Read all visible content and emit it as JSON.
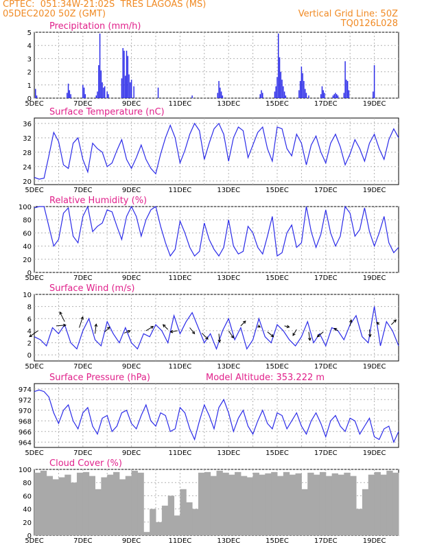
{
  "header": {
    "line1_left": "CPTEC:  051:34W-21:02S  TRES LAGOAS (MS)",
    "line2_left": "05DEC2020 50Z (GMT)",
    "line2_right": "Vertical Grid Line: 50Z",
    "line3_right": "TQ0126L028",
    "model_altitude": "Model Altitude: 353.222 m"
  },
  "colors": {
    "header": "#f08a24",
    "title": "#e0208a",
    "series": "#2a2ae8",
    "cloud": "#a9a9a9",
    "grid": "#b0b0b0"
  },
  "x_tick_labels": [
    "5DEC",
    "7DEC",
    "9DEC",
    "11DEC",
    "13DEC",
    "15DEC",
    "17DEC",
    "19DEC"
  ],
  "x_tick_days": [
    5,
    7,
    9,
    11,
    13,
    15,
    17,
    19
  ],
  "x_range_days": [
    5,
    20
  ],
  "chart_data": [
    {
      "type": "bar",
      "title": "Precipitation (mm/h)",
      "ylim": [
        0,
        5
      ],
      "yticks": [
        0,
        1,
        2,
        3,
        4,
        5
      ],
      "grid": true,
      "x": [
        5.05,
        5.1,
        6.35,
        6.4,
        6.45,
        6.5,
        7.0,
        7.05,
        7.1,
        7.55,
        7.6,
        7.65,
        7.7,
        7.75,
        7.8,
        7.85,
        7.9,
        8.0,
        8.05,
        8.6,
        8.65,
        8.7,
        8.75,
        8.8,
        8.85,
        8.9,
        8.95,
        9.0,
        9.1,
        10.1,
        11.5,
        12.55,
        12.6,
        12.65,
        12.7,
        12.75,
        14.3,
        14.35,
        14.4,
        14.9,
        14.95,
        15.0,
        15.05,
        15.1,
        15.15,
        15.2,
        15.25,
        15.3,
        15.35,
        15.9,
        15.95,
        16.0,
        16.05,
        16.1,
        16.15,
        16.2,
        16.3,
        16.8,
        16.85,
        16.9,
        16.95,
        17.3,
        17.35,
        17.4,
        17.45,
        17.5,
        17.75,
        17.8,
        17.85,
        17.9,
        17.95,
        18.95,
        19.0
      ],
      "values": [
        0.7,
        0.2,
        0.4,
        1.1,
        0.6,
        0.3,
        1.0,
        0.8,
        0.3,
        0.2,
        0.5,
        2.5,
        4.9,
        2.1,
        1.2,
        0.8,
        0.9,
        0.5,
        0.3,
        1.5,
        3.8,
        3.6,
        1.7,
        3.6,
        3.2,
        1.8,
        1.2,
        1.4,
        0.9,
        0.8,
        0.2,
        0.4,
        1.3,
        0.8,
        0.5,
        0.2,
        0.3,
        0.6,
        0.4,
        0.5,
        0.9,
        1.6,
        4.9,
        3.1,
        2.0,
        1.4,
        0.9,
        0.5,
        0.2,
        0.6,
        1.3,
        2.4,
        1.9,
        1.3,
        0.7,
        0.4,
        0.2,
        0.3,
        0.9,
        0.6,
        0.4,
        0.2,
        0.3,
        0.4,
        0.3,
        0.2,
        0.4,
        2.8,
        1.4,
        1.3,
        0.6,
        0.5,
        2.5
      ]
    },
    {
      "type": "line",
      "title": "Surface Temperature (nC)",
      "ylim": [
        19,
        37.5
      ],
      "yticks": [
        20,
        24,
        28,
        32,
        36
      ],
      "grid": true,
      "x": [
        5.0,
        5.2,
        5.4,
        5.6,
        5.8,
        6.0,
        6.2,
        6.4,
        6.6,
        6.8,
        7.0,
        7.2,
        7.4,
        7.6,
        7.8,
        8.0,
        8.2,
        8.4,
        8.6,
        8.8,
        9.0,
        9.2,
        9.4,
        9.6,
        9.8,
        10.0,
        10.2,
        10.4,
        10.6,
        10.8,
        11.0,
        11.2,
        11.4,
        11.6,
        11.8,
        12.0,
        12.2,
        12.4,
        12.6,
        12.8,
        13.0,
        13.2,
        13.4,
        13.6,
        13.8,
        14.0,
        14.2,
        14.4,
        14.6,
        14.8,
        15.0,
        15.2,
        15.4,
        15.6,
        15.8,
        16.0,
        16.2,
        16.4,
        16.6,
        16.8,
        17.0,
        17.2,
        17.4,
        17.6,
        17.8,
        18.0,
        18.2,
        18.4,
        18.6,
        18.8,
        19.0,
        19.2,
        19.4,
        19.6,
        19.8,
        20.0
      ],
      "y": [
        21.0,
        20.5,
        20.8,
        27.0,
        33.5,
        31.0,
        24.5,
        23.5,
        30.5,
        32.0,
        26.0,
        22.5,
        30.5,
        29.0,
        28.0,
        24.0,
        25.0,
        28.5,
        31.5,
        26.0,
        23.5,
        26.5,
        30.0,
        26.0,
        23.5,
        22.0,
        27.5,
        32.0,
        35.5,
        32.0,
        25.0,
        28.5,
        33.0,
        36.0,
        34.0,
        26.0,
        30.5,
        34.5,
        36.0,
        33.0,
        25.5,
        32.0,
        35.0,
        34.0,
        26.5,
        30.0,
        33.5,
        35.0,
        29.0,
        25.5,
        35.0,
        34.5,
        29.0,
        27.0,
        33.0,
        30.5,
        24.5,
        30.0,
        32.5,
        28.0,
        25.0,
        30.5,
        33.0,
        29.5,
        24.5,
        27.5,
        31.5,
        29.0,
        25.5,
        30.5,
        33.0,
        29.0,
        26.0,
        31.5,
        34.5,
        32.0
      ]
    },
    {
      "type": "line",
      "title": "Relative Humidity (%)",
      "ylim": [
        0,
        100
      ],
      "yticks": [
        0,
        20,
        40,
        60,
        80,
        100
      ],
      "grid": true,
      "x": [
        5.0,
        5.2,
        5.4,
        5.6,
        5.8,
        6.0,
        6.2,
        6.4,
        6.6,
        6.8,
        7.0,
        7.2,
        7.4,
        7.6,
        7.8,
        8.0,
        8.2,
        8.4,
        8.6,
        8.8,
        9.0,
        9.2,
        9.4,
        9.6,
        9.8,
        10.0,
        10.2,
        10.4,
        10.6,
        10.8,
        11.0,
        11.2,
        11.4,
        11.6,
        11.8,
        12.0,
        12.2,
        12.4,
        12.6,
        12.8,
        13.0,
        13.2,
        13.4,
        13.6,
        13.8,
        14.0,
        14.2,
        14.4,
        14.6,
        14.8,
        15.0,
        15.2,
        15.4,
        15.6,
        15.8,
        16.0,
        16.2,
        16.4,
        16.6,
        16.8,
        17.0,
        17.2,
        17.4,
        17.6,
        17.8,
        18.0,
        18.2,
        18.4,
        18.6,
        18.8,
        19.0,
        19.2,
        19.4,
        19.6,
        19.8,
        20.0
      ],
      "y": [
        98,
        100,
        100,
        70,
        40,
        50,
        90,
        98,
        55,
        45,
        85,
        100,
        62,
        70,
        75,
        95,
        92,
        70,
        50,
        85,
        100,
        85,
        55,
        80,
        95,
        100,
        70,
        45,
        25,
        35,
        78,
        60,
        38,
        25,
        32,
        75,
        50,
        35,
        25,
        38,
        80,
        40,
        28,
        32,
        70,
        60,
        38,
        28,
        55,
        85,
        25,
        30,
        60,
        72,
        38,
        45,
        100,
        62,
        38,
        58,
        95,
        60,
        40,
        55,
        100,
        90,
        55,
        65,
        98,
        62,
        40,
        60,
        85,
        45,
        30,
        38
      ]
    },
    {
      "type": "line",
      "title": "Surface Wind (m/s)",
      "ylim": [
        -1,
        10
      ],
      "yticks": [
        0,
        2,
        4,
        6,
        8,
        10
      ],
      "grid": true,
      "x": [
        5.0,
        5.25,
        5.5,
        5.75,
        6.0,
        6.25,
        6.5,
        6.75,
        7.0,
        7.25,
        7.5,
        7.75,
        8.0,
        8.25,
        8.5,
        8.75,
        9.0,
        9.25,
        9.5,
        9.75,
        10.0,
        10.25,
        10.5,
        10.75,
        11.0,
        11.25,
        11.5,
        11.75,
        12.0,
        12.25,
        12.5,
        12.75,
        13.0,
        13.25,
        13.5,
        13.75,
        14.0,
        14.25,
        14.5,
        14.75,
        15.0,
        15.25,
        15.5,
        15.75,
        16.0,
        16.25,
        16.5,
        16.75,
        17.0,
        17.25,
        17.5,
        17.75,
        18.0,
        18.25,
        18.5,
        18.75,
        19.0,
        19.25,
        19.5,
        19.75,
        20.0
      ],
      "y": [
        3.0,
        2.5,
        1.5,
        4.5,
        3.5,
        5.0,
        2.0,
        1.0,
        4.0,
        6.0,
        2.5,
        1.5,
        5.5,
        3.5,
        2.0,
        4.5,
        2.0,
        1.0,
        3.5,
        3.0,
        5.0,
        4.0,
        2.0,
        6.5,
        3.5,
        5.5,
        7.0,
        4.5,
        2.0,
        3.5,
        1.0,
        4.0,
        6.0,
        2.5,
        4.5,
        1.0,
        2.5,
        6.0,
        3.0,
        2.0,
        5.0,
        4.0,
        2.5,
        1.5,
        3.0,
        5.5,
        2.0,
        3.5,
        1.5,
        4.5,
        4.0,
        2.5,
        5.0,
        6.5,
        3.0,
        2.0,
        8.0,
        1.5,
        5.5,
        4.0,
        1.5
      ],
      "arrows": [
        {
          "x": 5.15,
          "y": 4.0,
          "u": -3.5,
          "v": -2.5
        },
        {
          "x": 5.9,
          "y": 4.8,
          "u": 4.0,
          "v": 0.3
        },
        {
          "x": 6.25,
          "y": 5.5,
          "u": -2.0,
          "v": 4.0
        },
        {
          "x": 6.85,
          "y": 4.5,
          "u": 1.5,
          "v": 4.5
        },
        {
          "x": 7.5,
          "y": 3.5,
          "u": 0.5,
          "v": 4.0
        },
        {
          "x": 7.9,
          "y": 3.8,
          "u": 2.0,
          "v": 2.0
        },
        {
          "x": 8.7,
          "y": 3.6,
          "u": 2.5,
          "v": 1.0
        },
        {
          "x": 9.6,
          "y": 4.0,
          "u": 3.0,
          "v": 1.8
        },
        {
          "x": 10.5,
          "y": 4.2,
          "u": -2.0,
          "v": 2.0
        },
        {
          "x": 10.9,
          "y": 4.0,
          "u": -3.0,
          "v": -0.5
        },
        {
          "x": 11.4,
          "y": 4.5,
          "u": 2.0,
          "v": -2.5
        },
        {
          "x": 11.9,
          "y": 3.6,
          "u": 2.5,
          "v": -2.5
        },
        {
          "x": 12.6,
          "y": 3.5,
          "u": 0.3,
          "v": -3.5
        },
        {
          "x": 13.0,
          "y": 4.0,
          "u": 2.0,
          "v": -3.0
        },
        {
          "x": 13.5,
          "y": 4.8,
          "u": 2.0,
          "v": 2.0
        },
        {
          "x": 14.2,
          "y": 4.8,
          "u": 1.0,
          "v": -0.5
        },
        {
          "x": 14.6,
          "y": 3.8,
          "u": 2.5,
          "v": -2.0
        },
        {
          "x": 15.3,
          "y": 4.8,
          "u": 2.0,
          "v": -0.5
        },
        {
          "x": 15.8,
          "y": 4.2,
          "u": -1.5,
          "v": -2.5
        },
        {
          "x": 16.3,
          "y": 3.8,
          "u": 0.5,
          "v": -3.5
        },
        {
          "x": 16.9,
          "y": 3.8,
          "u": -2.5,
          "v": -2.0
        },
        {
          "x": 17.5,
          "y": 4.0,
          "u": -1.5,
          "v": 1.0
        },
        {
          "x": 18.0,
          "y": 4.8,
          "u": 0.5,
          "v": 2.5
        },
        {
          "x": 18.8,
          "y": 4.2,
          "u": 0.3,
          "v": -3.0
        },
        {
          "x": 19.2,
          "y": 5.0,
          "u": -1.0,
          "v": 1.0
        },
        {
          "x": 19.7,
          "y": 5.0,
          "u": 2.0,
          "v": 2.0
        }
      ]
    },
    {
      "type": "line",
      "title": "Surface Pressure (hPa)",
      "ylim": [
        963,
        975
      ],
      "yticks": [
        964,
        966,
        968,
        970,
        972,
        974
      ],
      "grid": true,
      "x": [
        5.0,
        5.2,
        5.4,
        5.6,
        5.8,
        6.0,
        6.2,
        6.4,
        6.6,
        6.8,
        7.0,
        7.2,
        7.4,
        7.6,
        7.8,
        8.0,
        8.2,
        8.4,
        8.6,
        8.8,
        9.0,
        9.2,
        9.4,
        9.6,
        9.8,
        10.0,
        10.2,
        10.4,
        10.6,
        10.8,
        11.0,
        11.2,
        11.4,
        11.6,
        11.8,
        12.0,
        12.2,
        12.4,
        12.6,
        12.8,
        13.0,
        13.2,
        13.4,
        13.6,
        13.8,
        14.0,
        14.2,
        14.4,
        14.6,
        14.8,
        15.0,
        15.2,
        15.4,
        15.6,
        15.8,
        16.0,
        16.2,
        16.4,
        16.6,
        16.8,
        17.0,
        17.2,
        17.4,
        17.6,
        17.8,
        18.0,
        18.2,
        18.4,
        18.6,
        18.8,
        19.0,
        19.2,
        19.4,
        19.6,
        19.8,
        20.0
      ],
      "y": [
        973.5,
        973.8,
        973.5,
        972.5,
        969.5,
        967.5,
        970.0,
        971.0,
        968.0,
        966.5,
        969.5,
        970.5,
        967.0,
        965.5,
        968.5,
        969.0,
        966.0,
        967.0,
        969.5,
        970.0,
        967.5,
        966.5,
        969.0,
        971.0,
        968.0,
        967.0,
        969.5,
        969.0,
        966.0,
        966.5,
        970.5,
        969.5,
        966.5,
        964.5,
        968.0,
        971.0,
        969.0,
        966.5,
        970.5,
        972.0,
        969.5,
        966.0,
        968.5,
        970.0,
        967.0,
        965.5,
        968.0,
        970.0,
        967.5,
        966.5,
        969.5,
        969.0,
        966.5,
        968.0,
        969.5,
        967.0,
        965.5,
        968.0,
        969.5,
        967.5,
        965.0,
        968.0,
        969.0,
        967.0,
        966.0,
        968.5,
        968.0,
        965.5,
        967.0,
        968.5,
        965.0,
        964.5,
        966.5,
        967.0,
        964.0,
        966.0
      ]
    },
    {
      "type": "bar",
      "title": "Cloud Cover (%)",
      "ylim": [
        0,
        100
      ],
      "yticks": [
        0,
        20,
        40,
        60,
        80,
        100
      ],
      "grid": true,
      "x": [
        5.0,
        5.25,
        5.5,
        5.75,
        6.0,
        6.25,
        6.5,
        6.75,
        7.0,
        7.25,
        7.5,
        7.75,
        8.0,
        8.25,
        8.5,
        8.75,
        9.0,
        9.25,
        9.5,
        9.75,
        10.0,
        10.25,
        10.5,
        10.75,
        11.0,
        11.25,
        11.5,
        11.75,
        12.0,
        12.25,
        12.5,
        12.75,
        13.0,
        13.25,
        13.5,
        13.75,
        14.0,
        14.25,
        14.5,
        14.75,
        15.0,
        15.25,
        15.5,
        15.75,
        16.0,
        16.25,
        16.5,
        16.75,
        17.0,
        17.25,
        17.5,
        17.75,
        18.0,
        18.25,
        18.5,
        18.75,
        19.0,
        19.25,
        19.5,
        19.75
      ],
      "values": [
        95,
        98,
        90,
        85,
        88,
        92,
        80,
        95,
        96,
        90,
        70,
        88,
        92,
        96,
        85,
        90,
        98,
        95,
        5,
        40,
        20,
        45,
        60,
        30,
        70,
        50,
        40,
        95,
        96,
        90,
        98,
        95,
        92,
        96,
        90,
        88,
        95,
        92,
        94,
        96,
        90,
        96,
        92,
        94,
        70,
        95,
        92,
        96,
        90,
        94,
        92,
        95,
        90,
        40,
        70,
        92,
        96,
        92,
        98,
        95
      ]
    }
  ]
}
